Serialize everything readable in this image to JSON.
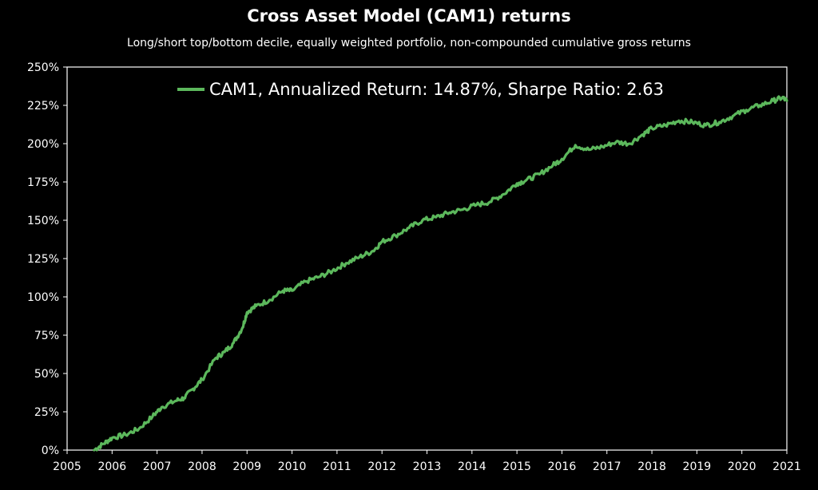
{
  "chart_data": {
    "type": "line",
    "title": "Cross Asset Model (CAM1) returns",
    "subtitle": "Long/short top/bottom decile, equally weighted portfolio, non-compounded cumulative gross returns",
    "xlabel": "",
    "ylabel": "",
    "xlim": [
      2005,
      2021
    ],
    "ylim": [
      0,
      250
    ],
    "x_ticks": [
      "2005",
      "2006",
      "2007",
      "2008",
      "2009",
      "2010",
      "2011",
      "2012",
      "2013",
      "2014",
      "2015",
      "2016",
      "2017",
      "2018",
      "2019",
      "2020",
      "2021"
    ],
    "y_ticks": [
      "0%",
      "25%",
      "50%",
      "75%",
      "100%",
      "125%",
      "150%",
      "175%",
      "200%",
      "225%",
      "250%"
    ],
    "grid": false,
    "legend_position": "top-center",
    "colors": {
      "background": "#000000",
      "series": "#5cb85c",
      "axis": "#ffffff"
    },
    "series": [
      {
        "name": "CAM1, Annualized Return: 14.87%, Sharpe Ratio: 2.63",
        "x": [
          2005.6,
          2005.8,
          2006.0,
          2006.3,
          2006.6,
          2006.9,
          2007.1,
          2007.4,
          2007.6,
          2007.8,
          2008.0,
          2008.3,
          2008.5,
          2008.7,
          2008.9,
          2009.0,
          2009.2,
          2009.5,
          2009.8,
          2010.0,
          2010.3,
          2010.6,
          2010.9,
          2011.2,
          2011.5,
          2011.8,
          2012.0,
          2012.3,
          2012.6,
          2012.9,
          2013.2,
          2013.5,
          2013.8,
          2014.1,
          2014.4,
          2014.7,
          2015.0,
          2015.2,
          2015.5,
          2015.8,
          2016.0,
          2016.3,
          2016.6,
          2016.9,
          2017.2,
          2017.5,
          2017.8,
          2018.0,
          2018.3,
          2018.6,
          2018.9,
          2019.2,
          2019.5,
          2019.8,
          2020.1,
          2020.4,
          2020.7,
          2020.9,
          2021.0
        ],
        "values": [
          0,
          4,
          8,
          10,
          14,
          22,
          28,
          32,
          34,
          40,
          46,
          60,
          64,
          70,
          80,
          90,
          94,
          98,
          104,
          104,
          110,
          113,
          117,
          122,
          126,
          130,
          136,
          140,
          145,
          150,
          152,
          155,
          157,
          160,
          162,
          167,
          174,
          176,
          180,
          186,
          190,
          199,
          196,
          198,
          201,
          200,
          206,
          210,
          212,
          215,
          214,
          212,
          214,
          218,
          222,
          225,
          228,
          230,
          228
        ]
      }
    ]
  }
}
